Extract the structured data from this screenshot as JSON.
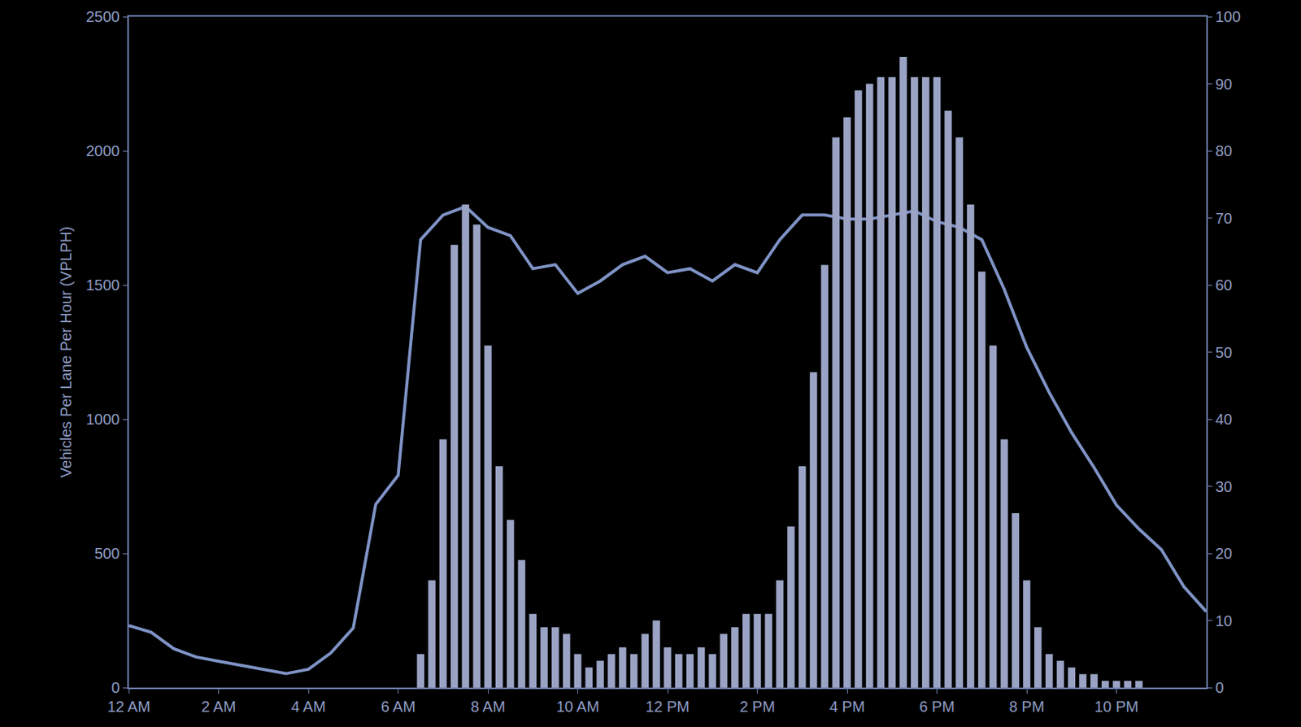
{
  "chart_data": {
    "type": "bar",
    "y_label": "Vehicles Per Lane Per Hour (VPLPH)",
    "xlim": [
      0,
      24
    ],
    "xticks": [
      {
        "value": 0,
        "label": "12 AM"
      },
      {
        "value": 2,
        "label": "2 AM"
      },
      {
        "value": 4,
        "label": "4 AM"
      },
      {
        "value": 6,
        "label": "6 AM"
      },
      {
        "value": 8,
        "label": "8 AM"
      },
      {
        "value": 10,
        "label": "10 AM"
      },
      {
        "value": 12,
        "label": "12 PM"
      },
      {
        "value": 14,
        "label": "2 PM"
      },
      {
        "value": 16,
        "label": "4 PM"
      },
      {
        "value": 18,
        "label": "6 PM"
      },
      {
        "value": 20,
        "label": "8 PM"
      },
      {
        "value": 22,
        "label": "10 PM"
      }
    ],
    "ylim": [
      0,
      2500
    ],
    "yticks": [
      0,
      500,
      1000,
      1500,
      2000,
      2500
    ],
    "y2lim": [
      0,
      100
    ],
    "y2ticks": [
      0,
      10,
      20,
      30,
      40,
      50,
      60,
      70,
      80,
      90,
      100
    ],
    "series": [
      {
        "type": "bar",
        "axis": "y2",
        "color": "#9aa3c4",
        "x": [
          6,
          6.25,
          6.5,
          6.75,
          7,
          7.25,
          7.5,
          7.75,
          8,
          8.25,
          8.5,
          8.75,
          9,
          9.25,
          9.5,
          9.75,
          10,
          10.25,
          10.5,
          10.75,
          11,
          11.25,
          11.5,
          11.75,
          12,
          12.25,
          12.5,
          12.75,
          13,
          13.25,
          13.5,
          13.75,
          14,
          14.25,
          14.5,
          14.75,
          15,
          15.25,
          15.5,
          15.75,
          16,
          16.25,
          16.5,
          16.75,
          17,
          17.25,
          17.5,
          17.75,
          18,
          18.25,
          18.5,
          18.75,
          19,
          19.25,
          19.5,
          19.75,
          20,
          20.25,
          20.5,
          20.75,
          21,
          21.25,
          21.5,
          21.75,
          22,
          22.25,
          22.5,
          22.75,
          23
        ],
        "values": [
          0,
          0,
          5,
          16,
          37,
          66,
          72,
          69,
          51,
          33,
          25,
          19,
          11,
          9,
          9,
          8,
          5,
          3,
          4,
          5,
          6,
          5,
          8,
          10,
          6,
          5,
          5,
          6,
          5,
          8,
          9,
          11,
          11,
          11,
          16,
          24,
          33,
          47,
          63,
          82,
          85,
          89,
          90,
          91,
          91,
          94,
          91,
          91,
          91,
          86,
          82,
          72,
          62,
          51,
          37,
          26,
          16,
          9,
          5,
          4,
          3,
          2,
          2,
          1,
          1,
          1,
          1,
          0,
          0
        ]
      },
      {
        "type": "line",
        "color": "#7f93c6",
        "x": [
          0,
          0.5,
          1,
          1.5,
          2,
          2.5,
          3,
          3.5,
          4,
          4.5,
          5,
          5.5,
          6,
          6.5,
          7,
          7.5,
          8,
          8.5,
          9,
          9.5,
          10,
          10.5,
          11,
          11.5,
          12,
          12.5,
          13,
          13.5,
          14,
          14.5,
          15,
          15.5,
          16,
          16.5,
          17,
          17.5,
          18,
          18.5,
          19,
          19.5,
          20,
          20.5,
          21,
          21.5,
          22,
          22.5,
          23,
          23.5,
          24
        ],
        "values": [
          231,
          206,
          145,
          114,
          98,
          83,
          68,
          52,
          68,
          129,
          222,
          683,
          791,
          1669,
          1761,
          1792,
          1715,
          1684,
          1561,
          1576,
          1469,
          1515,
          1576,
          1607,
          1546,
          1561,
          1515,
          1576,
          1546,
          1669,
          1761,
          1761,
          1746,
          1746,
          1761,
          1776,
          1736,
          1715,
          1669,
          1484,
          1268,
          1100,
          950,
          820,
          680,
          591,
          514,
          376,
          283
        ]
      }
    ]
  }
}
